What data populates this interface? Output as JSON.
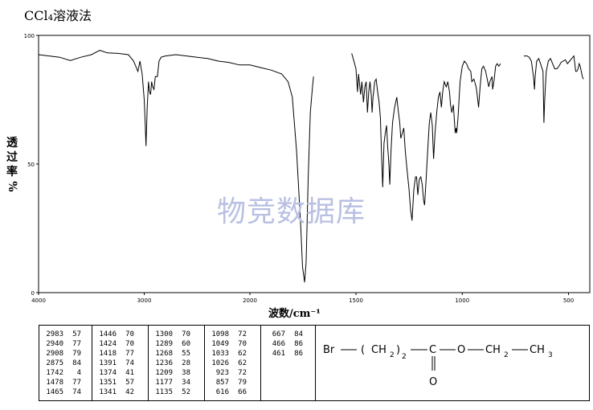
{
  "title": "CCl₄溶液法",
  "watermark": "物竞数据库",
  "chart_data": {
    "type": "line",
    "title": "CCl₄溶液法",
    "xlabel": "波数/cm⁻¹",
    "ylabel": "透过率%",
    "xlim": [
      4000,
      400
    ],
    "ylim": [
      0,
      100
    ],
    "x_ticks": [
      "4000",
      "3000",
      "2000",
      "1500",
      "1000",
      "500"
    ],
    "y_ticks": [
      "0",
      "50",
      "100"
    ],
    "grid": false,
    "series": [
      {
        "segments": [
          [
            [
              4000,
              92.5
            ],
            [
              3900,
              92
            ],
            [
              3800,
              91.5
            ],
            [
              3700,
              90.2
            ],
            [
              3600,
              91.5
            ],
            [
              3500,
              92.5
            ],
            [
              3420,
              94.2
            ],
            [
              3350,
              93.2
            ],
            [
              3250,
              93
            ],
            [
              3150,
              92.5
            ],
            [
              3100,
              90
            ],
            [
              3060,
              86
            ],
            [
              3040,
              90
            ],
            [
              3020,
              85
            ],
            [
              3000,
              75
            ],
            [
              2990,
              65
            ],
            [
              2983,
              57
            ],
            [
              2972,
              72
            ],
            [
              2960,
              82
            ],
            [
              2950,
              78
            ],
            [
              2940,
              77
            ],
            [
              2930,
              82
            ],
            [
              2920,
              80
            ],
            [
              2908,
              79
            ],
            [
              2895,
              84
            ],
            [
              2880,
              84
            ],
            [
              2875,
              84
            ],
            [
              2860,
              90
            ],
            [
              2840,
              91.5
            ],
            [
              2800,
              92
            ],
            [
              2700,
              92.5
            ],
            [
              2600,
              92
            ],
            [
              2500,
              91.5
            ],
            [
              2400,
              91
            ],
            [
              2300,
              90
            ],
            [
              2200,
              89.5
            ],
            [
              2100,
              88.5
            ],
            [
              2000,
              88.5
            ],
            [
              1950,
              87.5
            ],
            [
              1900,
              86.5
            ],
            [
              1850,
              85
            ],
            [
              1820,
              82
            ],
            [
              1800,
              76
            ],
            [
              1780,
              55
            ],
            [
              1760,
              25
            ],
            [
              1752,
              10
            ],
            [
              1742,
              4
            ],
            [
              1735,
              12
            ],
            [
              1725,
              45
            ],
            [
              1715,
              70
            ],
            [
              1705,
              80
            ],
            [
              1700,
              84
            ]
          ],
          [
            [
              1520,
              93
            ],
            [
              1510,
              90
            ],
            [
              1500,
              87
            ],
            [
              1493,
              78
            ],
            [
              1488,
              85
            ],
            [
              1478,
              77
            ],
            [
              1472,
              82
            ],
            [
              1465,
              74
            ],
            [
              1458,
              80
            ],
            [
              1452,
              82
            ],
            [
              1446,
              70
            ],
            [
              1440,
              78
            ],
            [
              1434,
              82
            ],
            [
              1428,
              77
            ],
            [
              1424,
              70
            ],
            [
              1420,
              76
            ],
            [
              1418,
              77
            ],
            [
              1412,
              82
            ],
            [
              1405,
              83
            ],
            [
              1398,
              78
            ],
            [
              1391,
              74
            ],
            [
              1385,
              68
            ],
            [
              1380,
              55
            ],
            [
              1374,
              41
            ],
            [
              1368,
              58
            ],
            [
              1362,
              62
            ],
            [
              1356,
              65
            ],
            [
              1351,
              57
            ],
            [
              1345,
              50
            ],
            [
              1341,
              42
            ],
            [
              1335,
              55
            ],
            [
              1328,
              66
            ],
            [
              1318,
              72
            ],
            [
              1308,
              76
            ],
            [
              1300,
              70
            ],
            [
              1294,
              66
            ],
            [
              1289,
              60
            ],
            [
              1282,
              62
            ],
            [
              1275,
              64
            ],
            [
              1268,
              55
            ],
            [
              1260,
              48
            ],
            [
              1250,
              40
            ],
            [
              1243,
              32
            ],
            [
              1236,
              28
            ],
            [
              1228,
              40
            ],
            [
              1220,
              45
            ],
            [
              1215,
              45
            ],
            [
              1209,
              38
            ],
            [
              1202,
              44
            ],
            [
              1195,
              45
            ],
            [
              1188,
              42
            ],
            [
              1182,
              36
            ],
            [
              1177,
              34
            ],
            [
              1170,
              44
            ],
            [
              1162,
              56
            ],
            [
              1155,
              66
            ],
            [
              1148,
              70
            ],
            [
              1141,
              65
            ],
            [
              1135,
              52
            ],
            [
              1128,
              62
            ],
            [
              1120,
              70
            ],
            [
              1112,
              76
            ],
            [
              1105,
              78
            ],
            [
              1098,
              72
            ],
            [
              1092,
              78
            ],
            [
              1085,
              82
            ],
            [
              1075,
              80
            ],
            [
              1068,
              82
            ],
            [
              1060,
              78
            ],
            [
              1055,
              73
            ],
            [
              1049,
              70
            ],
            [
              1042,
              73
            ],
            [
              1036,
              66
            ],
            [
              1033,
              62
            ],
            [
              1029,
              64
            ],
            [
              1026,
              62
            ],
            [
              1020,
              68
            ],
            [
              1010,
              82
            ],
            [
              1000,
              88
            ],
            [
              990,
              90
            ],
            [
              980,
              89
            ],
            [
              970,
              87
            ],
            [
              960,
              86
            ],
            [
              955,
              82
            ],
            [
              945,
              83
            ],
            [
              935,
              80
            ],
            [
              930,
              77
            ],
            [
              923,
              72
            ],
            [
              916,
              80
            ],
            [
              908,
              87
            ],
            [
              900,
              88
            ],
            [
              890,
              86
            ],
            [
              880,
              82
            ],
            [
              875,
              80
            ],
            [
              870,
              82
            ],
            [
              860,
              84
            ],
            [
              857,
              79
            ],
            [
              851,
              82
            ],
            [
              843,
              88
            ],
            [
              836,
              89
            ],
            [
              828,
              88
            ],
            [
              820,
              89
            ]
          ],
          [
            [
              710,
              92
            ],
            [
              695,
              92
            ],
            [
              685,
              91.5
            ],
            [
              675,
              90
            ],
            [
              665,
              84
            ],
            [
              660,
              79
            ],
            [
              657,
              84
            ],
            [
              650,
              90
            ],
            [
              640,
              91
            ],
            [
              630,
              88.5
            ],
            [
              620,
              86
            ],
            [
              616,
              66
            ],
            [
              612,
              75
            ],
            [
              605,
              86
            ],
            [
              595,
              90
            ],
            [
              585,
              91
            ],
            [
              575,
              89
            ],
            [
              565,
              87
            ],
            [
              555,
              87
            ],
            [
              545,
              88
            ],
            [
              535,
              89.5
            ],
            [
              525,
              90
            ],
            [
              515,
              90.5
            ],
            [
              505,
              89
            ],
            [
              495,
              90
            ],
            [
              485,
              91
            ],
            [
              475,
              92
            ],
            [
              466,
              86
            ],
            [
              461,
              86
            ],
            [
              455,
              87
            ],
            [
              450,
              89
            ],
            [
              445,
              88
            ],
            [
              440,
              86
            ],
            [
              435,
              84
            ],
            [
              430,
              83
            ]
          ]
        ]
      }
    ]
  },
  "peaks": [
    [
      [
        "2983",
        "57"
      ],
      [
        "2940",
        "77"
      ],
      [
        "2908",
        "79"
      ],
      [
        "2875",
        "84"
      ],
      [
        "1742",
        "4"
      ],
      [
        "1478",
        "77"
      ],
      [
        "1465",
        "74"
      ]
    ],
    [
      [
        "1446",
        "70"
      ],
      [
        "1424",
        "70"
      ],
      [
        "1418",
        "77"
      ],
      [
        "1391",
        "74"
      ],
      [
        "1374",
        "41"
      ],
      [
        "1351",
        "57"
      ],
      [
        "1341",
        "42"
      ]
    ],
    [
      [
        "1300",
        "70"
      ],
      [
        "1289",
        "60"
      ],
      [
        "1268",
        "55"
      ],
      [
        "1236",
        "28"
      ],
      [
        "1209",
        "38"
      ],
      [
        "1177",
        "34"
      ],
      [
        "1135",
        "52"
      ]
    ],
    [
      [
        "1098",
        "72"
      ],
      [
        "1049",
        "70"
      ],
      [
        "1033",
        "62"
      ],
      [
        "1026",
        "62"
      ],
      [
        "923",
        "72"
      ],
      [
        "857",
        "79"
      ],
      [
        "616",
        "66"
      ]
    ],
    [
      [
        "667",
        "84"
      ],
      [
        "466",
        "86"
      ],
      [
        "461",
        "86"
      ]
    ]
  ],
  "structure": {
    "br": "Br",
    "open_paren": "(",
    "ch2": "CH",
    "sub2": "2",
    "close_paren": ")",
    "subscript_n": "2",
    "c": "C",
    "o_ester": "O",
    "ch2_ethyl": "CH",
    "sub_ethyl": "2",
    "ch3": "CH",
    "sub3": "3",
    "o_carbonyl": "O"
  }
}
